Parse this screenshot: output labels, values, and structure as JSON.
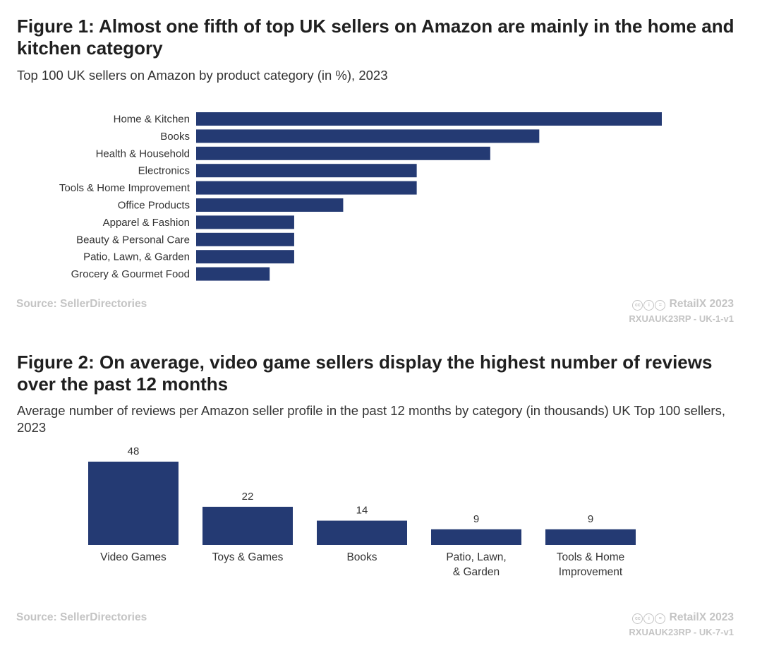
{
  "figure1": {
    "title": "Figure 1: Almost one fifth of top UK sellers on Amazon are mainly in the home and kitchen category",
    "subtitle": "Top 100 UK sellers on Amazon by product category (in %), 2023",
    "source": "Source: SellerDirectories",
    "credit": "RetailX 2023",
    "code": "RXUAUK23RP - UK-1-v1"
  },
  "figure2": {
    "title": "Figure 2: On average, video game sellers display the highest number of reviews over the past 12 months",
    "subtitle": "Average number of reviews per Amazon seller profile in the past 12 months by category (in thousands) UK Top 100 sellers, 2023",
    "source": "Source: SellerDirectories",
    "credit": "RetailX 2023",
    "code": "RXUAUK23RP - UK-7-v1"
  },
  "colors": {
    "bar": "#243a73",
    "label": "#333333",
    "muted": "#c4c4c4"
  },
  "icons": [
    "creative-commons-icon",
    "attribution-icon",
    "no-derivatives-icon"
  ],
  "chart_data": [
    {
      "type": "bar",
      "orientation": "horizontal",
      "categories": [
        "Home & Kitchen",
        "Books",
        "Health & Household",
        "Electronics",
        "Tools & Home Improvement",
        "Office Products",
        "Apparel & Fashion",
        "Beauty & Personal Care",
        "Patio, Lawn, & Garden",
        "Grocery & Gourmet Food"
      ],
      "values": [
        19,
        14,
        12,
        9,
        9,
        6,
        4,
        4,
        4,
        3
      ],
      "xlim": [
        0,
        19
      ],
      "grid": false,
      "legend": "none"
    },
    {
      "type": "bar",
      "orientation": "vertical",
      "categories": [
        "Video Games",
        "Toys & Games",
        "Books",
        "Patio, Lawn,\n& Garden",
        "Tools & Home\nImprovement"
      ],
      "values": [
        48,
        22,
        14,
        9,
        9
      ],
      "value_labels": [
        "48",
        "22",
        "14",
        "9",
        "9"
      ],
      "ylim": [
        0,
        48
      ],
      "grid": false,
      "legend": "none"
    }
  ]
}
